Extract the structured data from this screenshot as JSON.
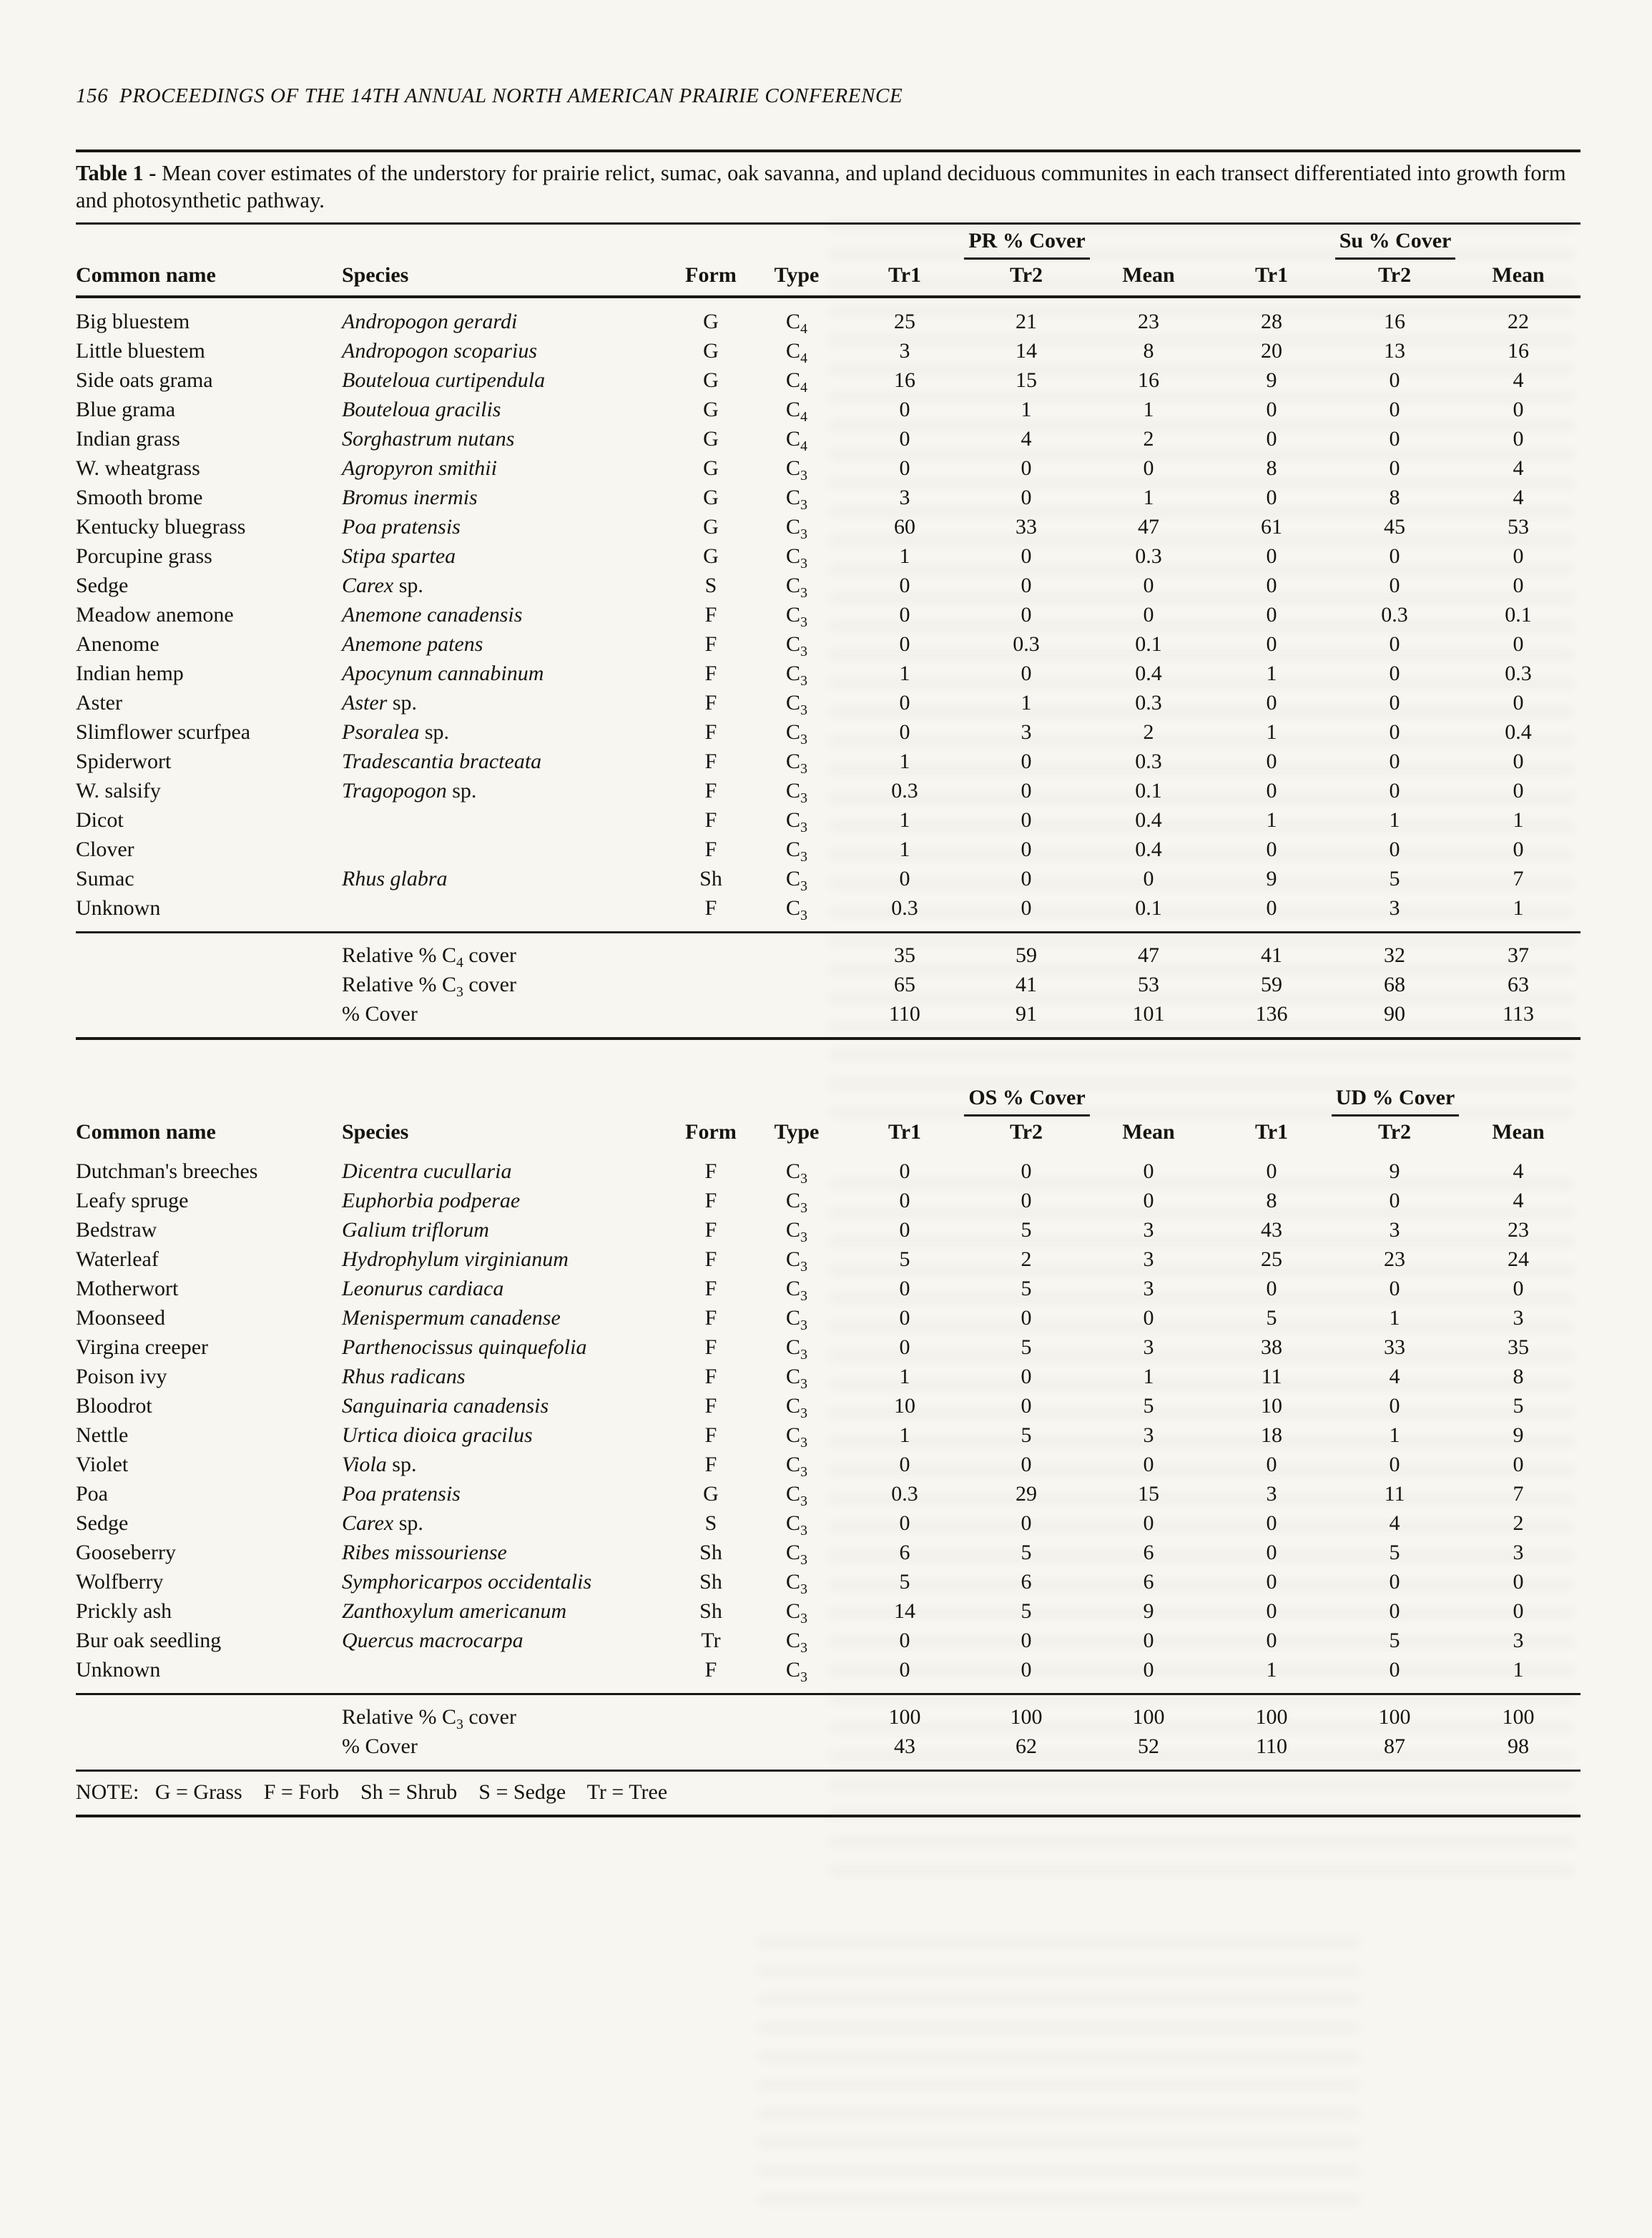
{
  "page": {
    "number": "156",
    "running_head": "PROCEEDINGS OF THE 14TH ANNUAL NORTH AMERICAN PRAIRIE CONFERENCE",
    "note": "NOTE:   G = Grass    F = Forb    Sh = Shrub    S = Sedge    Tr = Tree"
  },
  "caption": {
    "label": "Table 1 -",
    "text": " Mean cover estimates of the understory for prairie relict, sumac, oak savanna, and upland deciduous communites in each transect differentiated into growth form and photosynthetic pathway."
  },
  "tables": [
    {
      "group_headers": [
        "PR % Cover",
        "Su % Cover"
      ],
      "col_headers": [
        "Common name",
        "Species",
        "Form",
        "Type",
        "Tr1",
        "Tr2",
        "Mean",
        "Tr1",
        "Tr2",
        "Mean"
      ],
      "rows": [
        {
          "common": "Big bluestem",
          "species": "Andropogon gerardi",
          "sp": "",
          "form": "G",
          "type": "C4",
          "values": [
            "25",
            "21",
            "23",
            "28",
            "16",
            "22"
          ]
        },
        {
          "common": "Little bluestem",
          "species": "Andropogon scoparius",
          "sp": "",
          "form": "G",
          "type": "C4",
          "values": [
            "3",
            "14",
            "8",
            "20",
            "13",
            "16"
          ]
        },
        {
          "common": "Side oats grama",
          "species": "Bouteloua curtipendula",
          "sp": "",
          "form": "G",
          "type": "C4",
          "values": [
            "16",
            "15",
            "16",
            "9",
            "0",
            "4"
          ]
        },
        {
          "common": "Blue grama",
          "species": "Bouteloua gracilis",
          "sp": "",
          "form": "G",
          "type": "C4",
          "values": [
            "0",
            "1",
            "1",
            "0",
            "0",
            "0"
          ]
        },
        {
          "common": "Indian grass",
          "species": "Sorghastrum nutans",
          "sp": "",
          "form": "G",
          "type": "C4",
          "values": [
            "0",
            "4",
            "2",
            "0",
            "0",
            "0"
          ]
        },
        {
          "common": "W. wheatgrass",
          "species": "Agropyron smithii",
          "sp": "",
          "form": "G",
          "type": "C3",
          "values": [
            "0",
            "0",
            "0",
            "8",
            "0",
            "4"
          ]
        },
        {
          "common": "Smooth brome",
          "species": "Bromus inermis",
          "sp": "",
          "form": "G",
          "type": "C3",
          "values": [
            "3",
            "0",
            "1",
            "0",
            "8",
            "4"
          ]
        },
        {
          "common": "Kentucky bluegrass",
          "species": "Poa pratensis",
          "sp": "",
          "form": "G",
          "type": "C3",
          "values": [
            "60",
            "33",
            "47",
            "61",
            "45",
            "53"
          ]
        },
        {
          "common": "Porcupine grass",
          "species": "Stipa spartea",
          "sp": "",
          "form": "G",
          "type": "C3",
          "values": [
            "1",
            "0",
            "0.3",
            "0",
            "0",
            "0"
          ]
        },
        {
          "common": "Sedge",
          "species": "Carex",
          "sp": " sp.",
          "form": "S",
          "type": "C3",
          "values": [
            "0",
            "0",
            "0",
            "0",
            "0",
            "0"
          ]
        },
        {
          "common": "Meadow anemone",
          "species": "Anemone canadensis",
          "sp": "",
          "form": "F",
          "type": "C3",
          "values": [
            "0",
            "0",
            "0",
            "0",
            "0.3",
            "0.1"
          ]
        },
        {
          "common": "Anenome",
          "species": "Anemone patens",
          "sp": "",
          "form": "F",
          "type": "C3",
          "values": [
            "0",
            "0.3",
            "0.1",
            "0",
            "0",
            "0"
          ]
        },
        {
          "common": "Indian hemp",
          "species": "Apocynum cannabinum",
          "sp": "",
          "form": "F",
          "type": "C3",
          "values": [
            "1",
            "0",
            "0.4",
            "1",
            "0",
            "0.3"
          ]
        },
        {
          "common": "Aster",
          "species": "Aster",
          "sp": " sp.",
          "form": "F",
          "type": "C3",
          "values": [
            "0",
            "1",
            "0.3",
            "0",
            "0",
            "0"
          ]
        },
        {
          "common": "Slimflower scurfpea",
          "species": "Psoralea",
          "sp": " sp.",
          "form": "F",
          "type": "C3",
          "values": [
            "0",
            "3",
            "2",
            "1",
            "0",
            "0.4"
          ]
        },
        {
          "common": "Spiderwort",
          "species": "Tradescantia bracteata",
          "sp": "",
          "form": "F",
          "type": "C3",
          "values": [
            "1",
            "0",
            "0.3",
            "0",
            "0",
            "0"
          ]
        },
        {
          "common": "W. salsify",
          "species": "Tragopogon",
          "sp": " sp.",
          "form": "F",
          "type": "C3",
          "values": [
            "0.3",
            "0",
            "0.1",
            "0",
            "0",
            "0"
          ]
        },
        {
          "common": "Dicot",
          "species": "",
          "sp": "",
          "form": "F",
          "type": "C3",
          "values": [
            "1",
            "0",
            "0.4",
            "1",
            "1",
            "1"
          ]
        },
        {
          "common": "Clover",
          "species": "",
          "sp": "",
          "form": "F",
          "type": "C3",
          "values": [
            "1",
            "0",
            "0.4",
            "0",
            "0",
            "0"
          ]
        },
        {
          "common": "Sumac",
          "species": "Rhus glabra",
          "sp": "",
          "form": "Sh",
          "type": "C3",
          "values": [
            "0",
            "0",
            "0",
            "9",
            "5",
            "7"
          ]
        },
        {
          "common": "Unknown",
          "species": "",
          "sp": "",
          "form": "F",
          "type": "C3",
          "values": [
            "0.3",
            "0",
            "0.1",
            "0",
            "3",
            "1"
          ]
        }
      ],
      "summary": [
        {
          "label": "Relative % C4 cover",
          "values": [
            "35",
            "59",
            "47",
            "41",
            "32",
            "37"
          ]
        },
        {
          "label": "Relative % C3 cover",
          "values": [
            "65",
            "41",
            "53",
            "59",
            "68",
            "63"
          ]
        },
        {
          "label": "% Cover",
          "values": [
            "110",
            "91",
            "101",
            "136",
            "90",
            "113"
          ]
        }
      ]
    },
    {
      "group_headers": [
        "OS % Cover",
        "UD % Cover"
      ],
      "col_headers": [
        "Common name",
        "Species",
        "Form",
        "Type",
        "Tr1",
        "Tr2",
        "Mean",
        "Tr1",
        "Tr2",
        "Mean"
      ],
      "rows": [
        {
          "common": "Dutchman's breeches",
          "species": "Dicentra cucullaria",
          "sp": "",
          "form": "F",
          "type": "C3",
          "values": [
            "0",
            "0",
            "0",
            "0",
            "9",
            "4"
          ]
        },
        {
          "common": "Leafy spruge",
          "species": "Euphorbia podperae",
          "sp": "",
          "form": "F",
          "type": "C3",
          "values": [
            "0",
            "0",
            "0",
            "8",
            "0",
            "4"
          ]
        },
        {
          "common": "Bedstraw",
          "species": "Galium triflorum",
          "sp": "",
          "form": "F",
          "type": "C3",
          "values": [
            "0",
            "5",
            "3",
            "43",
            "3",
            "23"
          ]
        },
        {
          "common": "Waterleaf",
          "species": "Hydrophylum virginianum",
          "sp": "",
          "form": "F",
          "type": "C3",
          "values": [
            "5",
            "2",
            "3",
            "25",
            "23",
            "24"
          ]
        },
        {
          "common": "Motherwort",
          "species": "Leonurus cardiaca",
          "sp": "",
          "form": "F",
          "type": "C3",
          "values": [
            "0",
            "5",
            "3",
            "0",
            "0",
            "0"
          ]
        },
        {
          "common": "Moonseed",
          "species": "Menispermum canadense",
          "sp": "",
          "form": "F",
          "type": "C3",
          "values": [
            "0",
            "0",
            "0",
            "5",
            "1",
            "3"
          ]
        },
        {
          "common": "Virgina creeper",
          "species": "Parthenocissus quinquefolia",
          "sp": "",
          "form": "F",
          "type": "C3",
          "values": [
            "0",
            "5",
            "3",
            "38",
            "33",
            "35"
          ]
        },
        {
          "common": "Poison ivy",
          "species": "Rhus radicans",
          "sp": "",
          "form": "F",
          "type": "C3",
          "values": [
            "1",
            "0",
            "1",
            "11",
            "4",
            "8"
          ]
        },
        {
          "common": "Bloodrot",
          "species": "Sanguinaria canadensis",
          "sp": "",
          "form": "F",
          "type": "C3",
          "values": [
            "10",
            "0",
            "5",
            "10",
            "0",
            "5"
          ]
        },
        {
          "common": "Nettle",
          "species": "Urtica dioica gracilus",
          "sp": "",
          "form": "F",
          "type": "C3",
          "values": [
            "1",
            "5",
            "3",
            "18",
            "1",
            "9"
          ]
        },
        {
          "common": "Violet",
          "species": "Viola",
          "sp": " sp.",
          "form": "F",
          "type": "C3",
          "values": [
            "0",
            "0",
            "0",
            "0",
            "0",
            "0"
          ]
        },
        {
          "common": "Poa",
          "species": "Poa pratensis",
          "sp": "",
          "form": "G",
          "type": "C3",
          "values": [
            "0.3",
            "29",
            "15",
            "3",
            "11",
            "7"
          ]
        },
        {
          "common": "Sedge",
          "species": "Carex",
          "sp": " sp.",
          "form": "S",
          "type": "C3",
          "values": [
            "0",
            "0",
            "0",
            "0",
            "4",
            "2"
          ]
        },
        {
          "common": "Gooseberry",
          "species": "Ribes missouriense",
          "sp": "",
          "form": "Sh",
          "type": "C3",
          "values": [
            "6",
            "5",
            "6",
            "0",
            "5",
            "3"
          ]
        },
        {
          "common": "Wolfberry",
          "species": "Symphoricarpos occidentalis",
          "sp": "",
          "form": "Sh",
          "type": "C3",
          "values": [
            "5",
            "6",
            "6",
            "0",
            "0",
            "0"
          ]
        },
        {
          "common": "Prickly ash",
          "species": "Zanthoxylum americanum",
          "sp": "",
          "form": "Sh",
          "type": "C3",
          "values": [
            "14",
            "5",
            "9",
            "0",
            "0",
            "0"
          ]
        },
        {
          "common": "Bur oak seedling",
          "species": "Quercus macrocarpa",
          "sp": "",
          "form": "Tr",
          "type": "C3",
          "values": [
            "0",
            "0",
            "0",
            "0",
            "5",
            "3"
          ]
        },
        {
          "common": "Unknown",
          "species": "",
          "sp": "",
          "form": "F",
          "type": "C3",
          "values": [
            "0",
            "0",
            "0",
            "1",
            "0",
            "1"
          ]
        }
      ],
      "summary": [
        {
          "label": "Relative % C3 cover",
          "values": [
            "100",
            "100",
            "100",
            "100",
            "100",
            "100"
          ]
        },
        {
          "label": "% Cover",
          "values": [
            "43",
            "62",
            "52",
            "110",
            "87",
            "98"
          ]
        }
      ]
    }
  ]
}
